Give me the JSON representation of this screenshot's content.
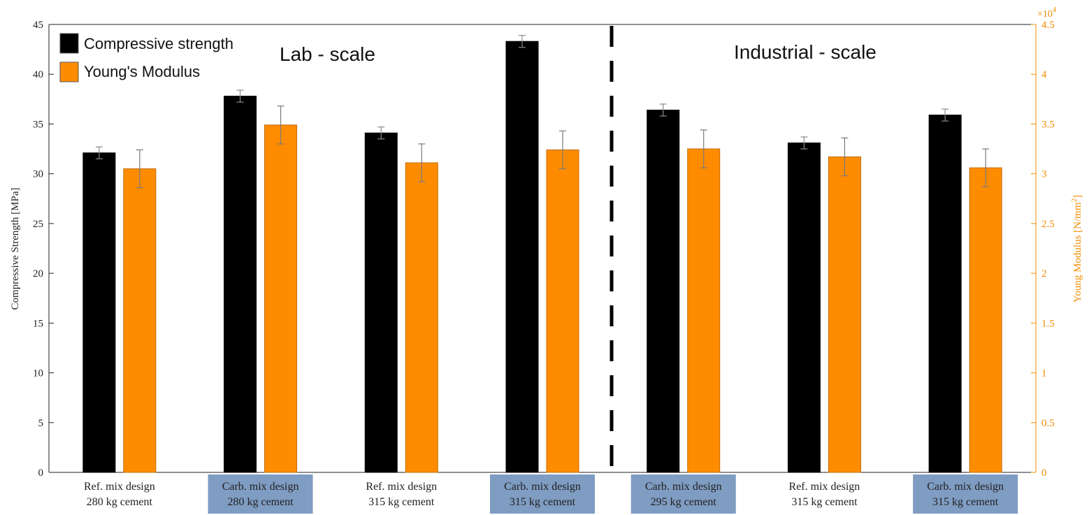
{
  "chart_data": {
    "type": "bar",
    "categories": [
      {
        "line1": "Ref. mix design",
        "line2": "280 kg cement",
        "highlight": false
      },
      {
        "line1": "Carb. mix design",
        "line2": "280 kg cement",
        "highlight": true
      },
      {
        "line1": "Ref. mix design",
        "line2": "315 kg cement",
        "highlight": false
      },
      {
        "line1": "Carb. mix design",
        "line2": "315 kg cement",
        "highlight": true
      },
      {
        "line1": "Carb. mix design",
        "line2": "295 kg cement",
        "highlight": true
      },
      {
        "line1": "Ref. mix design",
        "line2": "315 kg cement",
        "highlight": false
      },
      {
        "line1": "Carb. mix design",
        "line2": "315 kg cement",
        "highlight": true
      }
    ],
    "series": [
      {
        "name": "Compressive strength",
        "axis": "left",
        "color": "#000000",
        "values": [
          32.1,
          37.8,
          34.1,
          43.3,
          36.4,
          33.1,
          35.9
        ],
        "errors": [
          0.6,
          0.6,
          0.6,
          0.6,
          0.6,
          0.6,
          0.6
        ]
      },
      {
        "name": "Young's Modulus",
        "axis": "right",
        "color": "#ff8c00",
        "values": [
          30500,
          34900,
          31100,
          32400,
          32500,
          31700,
          30600
        ],
        "errors": [
          1900,
          1900,
          1900,
          1900,
          1900,
          1900,
          1900
        ]
      }
    ],
    "ylabel_left": "Compressive Strength [MPa]",
    "ylabel_right": "Young Modulus [N/mm",
    "ylabel_right_sup": "2",
    "ylabel_right_end": "]",
    "ylim_left": [
      0,
      45
    ],
    "ylim_right": [
      0,
      45000
    ],
    "yticks_left": [
      0,
      5,
      10,
      15,
      20,
      25,
      30,
      35,
      40,
      45
    ],
    "yticks_right": [
      "0",
      "0.5",
      "1",
      "1.5",
      "2",
      "2.5",
      "3",
      "3.5",
      "4",
      "4.5"
    ],
    "right_multiplier": "×10",
    "right_multiplier_exp": "4",
    "regions": [
      {
        "label": "Lab - scale"
      },
      {
        "label": "Industrial - scale"
      }
    ],
    "divider_after_category": 4,
    "legend_placement": "top-left",
    "grid": false,
    "colors": {
      "left_axis": "#222222",
      "right_axis": "#f08c00",
      "highlight_bg": "#7f9cc2"
    }
  }
}
